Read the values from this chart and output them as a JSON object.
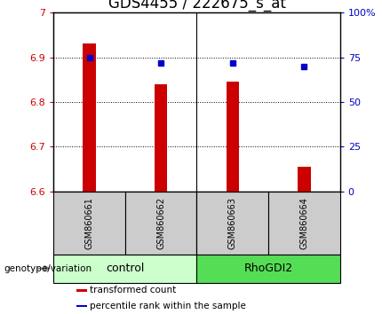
{
  "title": "GDS4455 / 222675_s_at",
  "samples": [
    "GSM860661",
    "GSM860662",
    "GSM860663",
    "GSM860664"
  ],
  "bar_values": [
    6.93,
    6.84,
    6.845,
    6.655
  ],
  "percentile_values": [
    75,
    72,
    72,
    70
  ],
  "ylim_left": [
    6.6,
    7.0
  ],
  "ylim_right": [
    0,
    100
  ],
  "yticks_left": [
    6.6,
    6.7,
    6.8,
    6.9,
    7.0
  ],
  "ytick_labels_left": [
    "6.6",
    "6.7",
    "6.8",
    "6.9",
    "7"
  ],
  "yticks_right": [
    0,
    25,
    50,
    75,
    100
  ],
  "ytick_labels_right": [
    "0",
    "25",
    "50",
    "75",
    "100%"
  ],
  "bar_color": "#cc0000",
  "dot_color": "#0000cc",
  "bar_bottom": 6.6,
  "bar_width": 0.18,
  "groups": [
    {
      "label": "control",
      "samples": [
        0,
        1
      ],
      "color": "#ccffcc"
    },
    {
      "label": "RhoGDI2",
      "samples": [
        2,
        3
      ],
      "color": "#55dd55"
    }
  ],
  "genotype_label": "genotype/variation",
  "legend_items": [
    {
      "label": "transformed count",
      "color": "#cc0000"
    },
    {
      "label": "percentile rank within the sample",
      "color": "#0000cc"
    }
  ],
  "grid_color": "black",
  "sample_area_color": "#cccccc",
  "title_fontsize": 12,
  "tick_fontsize": 8,
  "sample_fontsize": 7,
  "legend_fontsize": 7.5,
  "group_fontsize": 9
}
